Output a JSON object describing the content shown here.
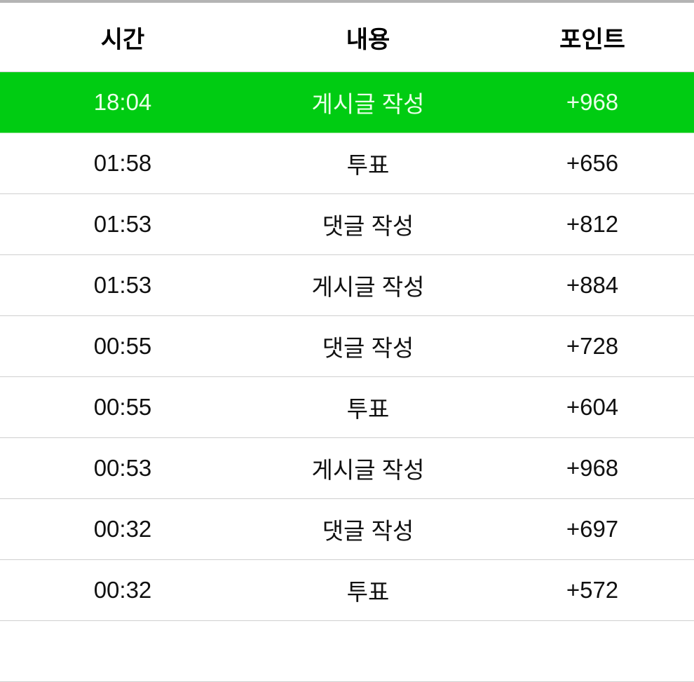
{
  "header": {
    "time": "시간",
    "content": "내용",
    "points": "포인트"
  },
  "accent_color": "#00cc12",
  "rows": [
    {
      "time": "18:04",
      "content": "게시글 작성",
      "points": "+968",
      "highlighted": true
    },
    {
      "time": "01:58",
      "content": "투표",
      "points": "+656"
    },
    {
      "time": "01:53",
      "content": "댓글 작성",
      "points": "+812"
    },
    {
      "time": "01:53",
      "content": "게시글 작성",
      "points": "+884"
    },
    {
      "time": "00:55",
      "content": "댓글 작성",
      "points": "+728"
    },
    {
      "time": "00:55",
      "content": "투표",
      "points": "+604"
    },
    {
      "time": "00:53",
      "content": "게시글 작성",
      "points": "+968"
    },
    {
      "time": "00:32",
      "content": "댓글 작성",
      "points": "+697"
    },
    {
      "time": "00:32",
      "content": "투표",
      "points": "+572"
    }
  ]
}
